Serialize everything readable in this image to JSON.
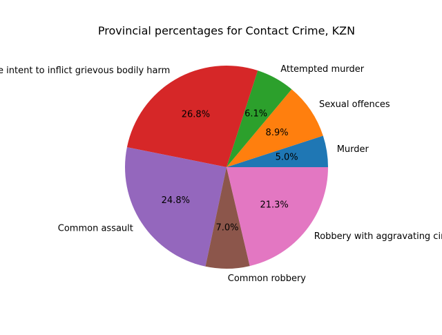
{
  "chart_data": {
    "type": "pie",
    "title": "Provincial percentages for Contact Crime, KZN",
    "categories": [
      "Murder",
      "Sexual offences",
      "Attempted murder",
      "Assault with the intent to inflict grievous bodily harm",
      "Common assault",
      "Common robbery",
      "Robbery with aggravating circumstances"
    ],
    "values": [
      5.0,
      8.9,
      6.1,
      26.8,
      24.8,
      7.0,
      21.3
    ],
    "percent_labels": [
      "5.0%",
      "8.9%",
      "6.1%",
      "26.8%",
      "24.8%",
      "7.0%",
      "21.3%"
    ],
    "colors": [
      "#1f77b4",
      "#ff7f0e",
      "#2ca02c",
      "#d62728",
      "#9467bd",
      "#8c564b",
      "#e377c2"
    ],
    "start_angle_deg": 0,
    "direction": "counterclockwise",
    "legend": "none"
  }
}
